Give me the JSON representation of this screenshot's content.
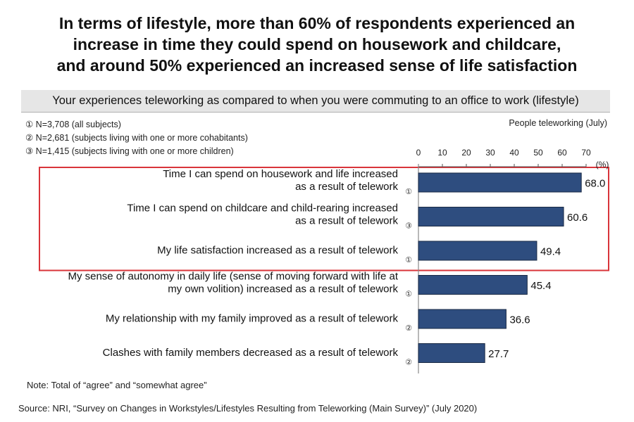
{
  "headline": {
    "lines": [
      "In terms of lifestyle, more than 60% of respondents experienced an",
      "increase in time they could spend on housework and childcare,",
      "and around 50% experienced an increased sense of life satisfaction"
    ]
  },
  "subtitle": "Your experiences teleworking as compared to when you were commuting to an office to work (lifestyle)",
  "sample_notes": [
    "① N=3,708 (all subjects)",
    "② N=2,681 (subjects living with one or more cohabitants)",
    "③ N=1,415 (subjects living with one or more children)"
  ],
  "series_label": "People teleworking (July)",
  "footnote": "Note: Total of “agree” and “somewhat agree”",
  "source": "Source: NRI, “Survey on Changes in Workstyles/Lifestyles Resulting from Teleworking (Main Survey)” (July 2020)",
  "colors": {
    "bar": "#2e4d7f",
    "bar_border": "#1a2a45",
    "highlight_box": "#d9343a",
    "axis": "#555555"
  },
  "chart_data": {
    "type": "bar",
    "orientation": "horizontal",
    "title": "Your experiences teleworking as compared to when you were commuting to an office to work (lifestyle)",
    "series_name": "People teleworking (July)",
    "xlabel": "(%)",
    "xlim": [
      0,
      70
    ],
    "xticks": [
      0,
      10,
      20,
      30,
      40,
      50,
      60,
      70
    ],
    "grid": false,
    "categories": [
      {
        "lines": [
          "Time I can spend on housework and life increased",
          "as a result of telework"
        ],
        "sample": "①"
      },
      {
        "lines": [
          "Time I can spend on childcare and child-rearing increased",
          "as a result of telework"
        ],
        "sample": "③"
      },
      {
        "lines": [
          "My life satisfaction increased as a result of telework"
        ],
        "sample": "①"
      },
      {
        "lines": [
          "My sense of autonomy in daily life (sense of moving forward with life at",
          "my own volition) increased as a result of telework"
        ],
        "sample": "①"
      },
      {
        "lines": [
          "My relationship with my family improved as a result of telework"
        ],
        "sample": "②"
      },
      {
        "lines": [
          "Clashes with family members decreased as a result of telework"
        ],
        "sample": "②"
      }
    ],
    "values": [
      68.0,
      60.6,
      49.4,
      45.4,
      36.6,
      27.7
    ],
    "value_labels": [
      "68.0",
      "60.6",
      "49.4",
      "45.4",
      "36.6",
      "27.7"
    ],
    "highlighted_categories": [
      0,
      1,
      2
    ]
  }
}
